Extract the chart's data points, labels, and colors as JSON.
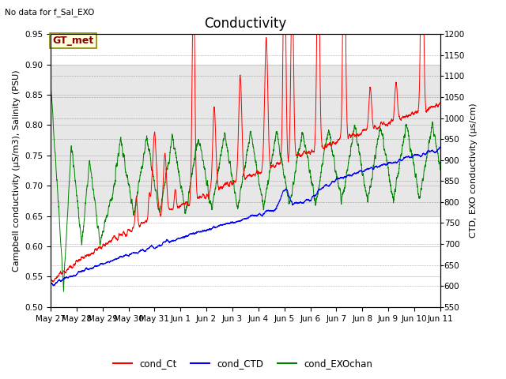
{
  "title": "Conductivity",
  "top_left_text": "No data for f_Sal_EXO",
  "ylabel_left": "Campbell conductivity (µS/m3), Salinity (PSU)",
  "ylabel_right": "CTD, EXO conductivity (µs/cm)",
  "ylim_left": [
    0.5,
    0.95
  ],
  "ylim_right": [
    550,
    1200
  ],
  "yticks_left": [
    0.5,
    0.55,
    0.6,
    0.65,
    0.7,
    0.75,
    0.8,
    0.85,
    0.9,
    0.95
  ],
  "yticks_right": [
    550,
    600,
    650,
    700,
    750,
    800,
    850,
    900,
    950,
    1000,
    1050,
    1100,
    1150,
    1200
  ],
  "xtick_labels": [
    "May 27",
    "May 28",
    "May 29",
    "May 30",
    "May 31",
    "Jun 1",
    "Jun 2",
    "Jun 3",
    "Jun 4",
    "Jun 5",
    "Jun 6",
    "Jun 7",
    "Jun 8",
    "Jun 9",
    "Jun 10",
    "Jun 11"
  ],
  "bg_shade_ylim": [
    0.65,
    0.9
  ],
  "annotation_box": "GT_met",
  "legend_labels": [
    "cond_Ct",
    "cond_CTD",
    "cond_EXOchan"
  ],
  "legend_colors": [
    "red",
    "blue",
    "green"
  ],
  "title_fontsize": 12,
  "label_fontsize": 8,
  "tick_fontsize": 7.5,
  "annot_fontsize": 9
}
